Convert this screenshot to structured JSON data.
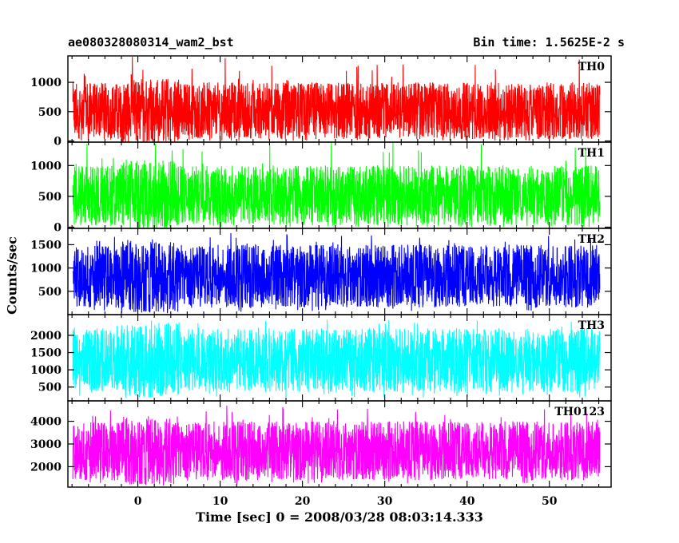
{
  "header": {
    "title_left": "ae080328080314_wam2_bst",
    "title_right": "Bin time: 1.5625E-2 s"
  },
  "chart_data": {
    "type": "line",
    "xlabel": "Time [sec] 0 = 2008/03/28 08:03:14.333",
    "ylabel": "Counts/sec",
    "xlim": [
      -8.5,
      57.5
    ],
    "x_range_data": [
      -7.9,
      56.1
    ],
    "x_ticks": [
      0,
      10,
      20,
      30,
      40,
      50
    ],
    "grid": false,
    "panels": [
      {
        "name": "TH0",
        "color": "#ff0000",
        "ylim": [
          -20,
          1450
        ],
        "y_ticks": [
          0,
          500,
          1000
        ],
        "typical_high": 1000,
        "typical_low": 30,
        "peak": 1450,
        "burst_peak_at_x": 0
      },
      {
        "name": "TH1",
        "color": "#00ff00",
        "ylim": [
          -20,
          1380
        ],
        "y_ticks": [
          0,
          500,
          1000
        ],
        "typical_high": 1000,
        "typical_low": 30,
        "peak": 1380,
        "burst_peak_at_x": 0
      },
      {
        "name": "TH2",
        "color": "#0000ff",
        "ylim": [
          0,
          1850
        ],
        "y_ticks": [
          500,
          1000,
          1500
        ],
        "typical_high": 1500,
        "typical_low": 150,
        "peak": 1750,
        "burst_peak_at_x": 0
      },
      {
        "name": "TH3",
        "color": "#00ffff",
        "ylim": [
          100,
          2600
        ],
        "y_ticks": [
          500,
          1000,
          1500,
          2000
        ],
        "typical_high": 2200,
        "typical_low": 350,
        "peak": 2450,
        "burst_peak_at_x": 0
      },
      {
        "name": "TH0123",
        "color": "#ff00ff",
        "ylim": [
          1100,
          4900
        ],
        "y_ticks": [
          2000,
          3000,
          4000
        ],
        "typical_high": 4000,
        "typical_low": 1400,
        "peak": 4700,
        "burst_peak_at_x": 0
      }
    ]
  }
}
